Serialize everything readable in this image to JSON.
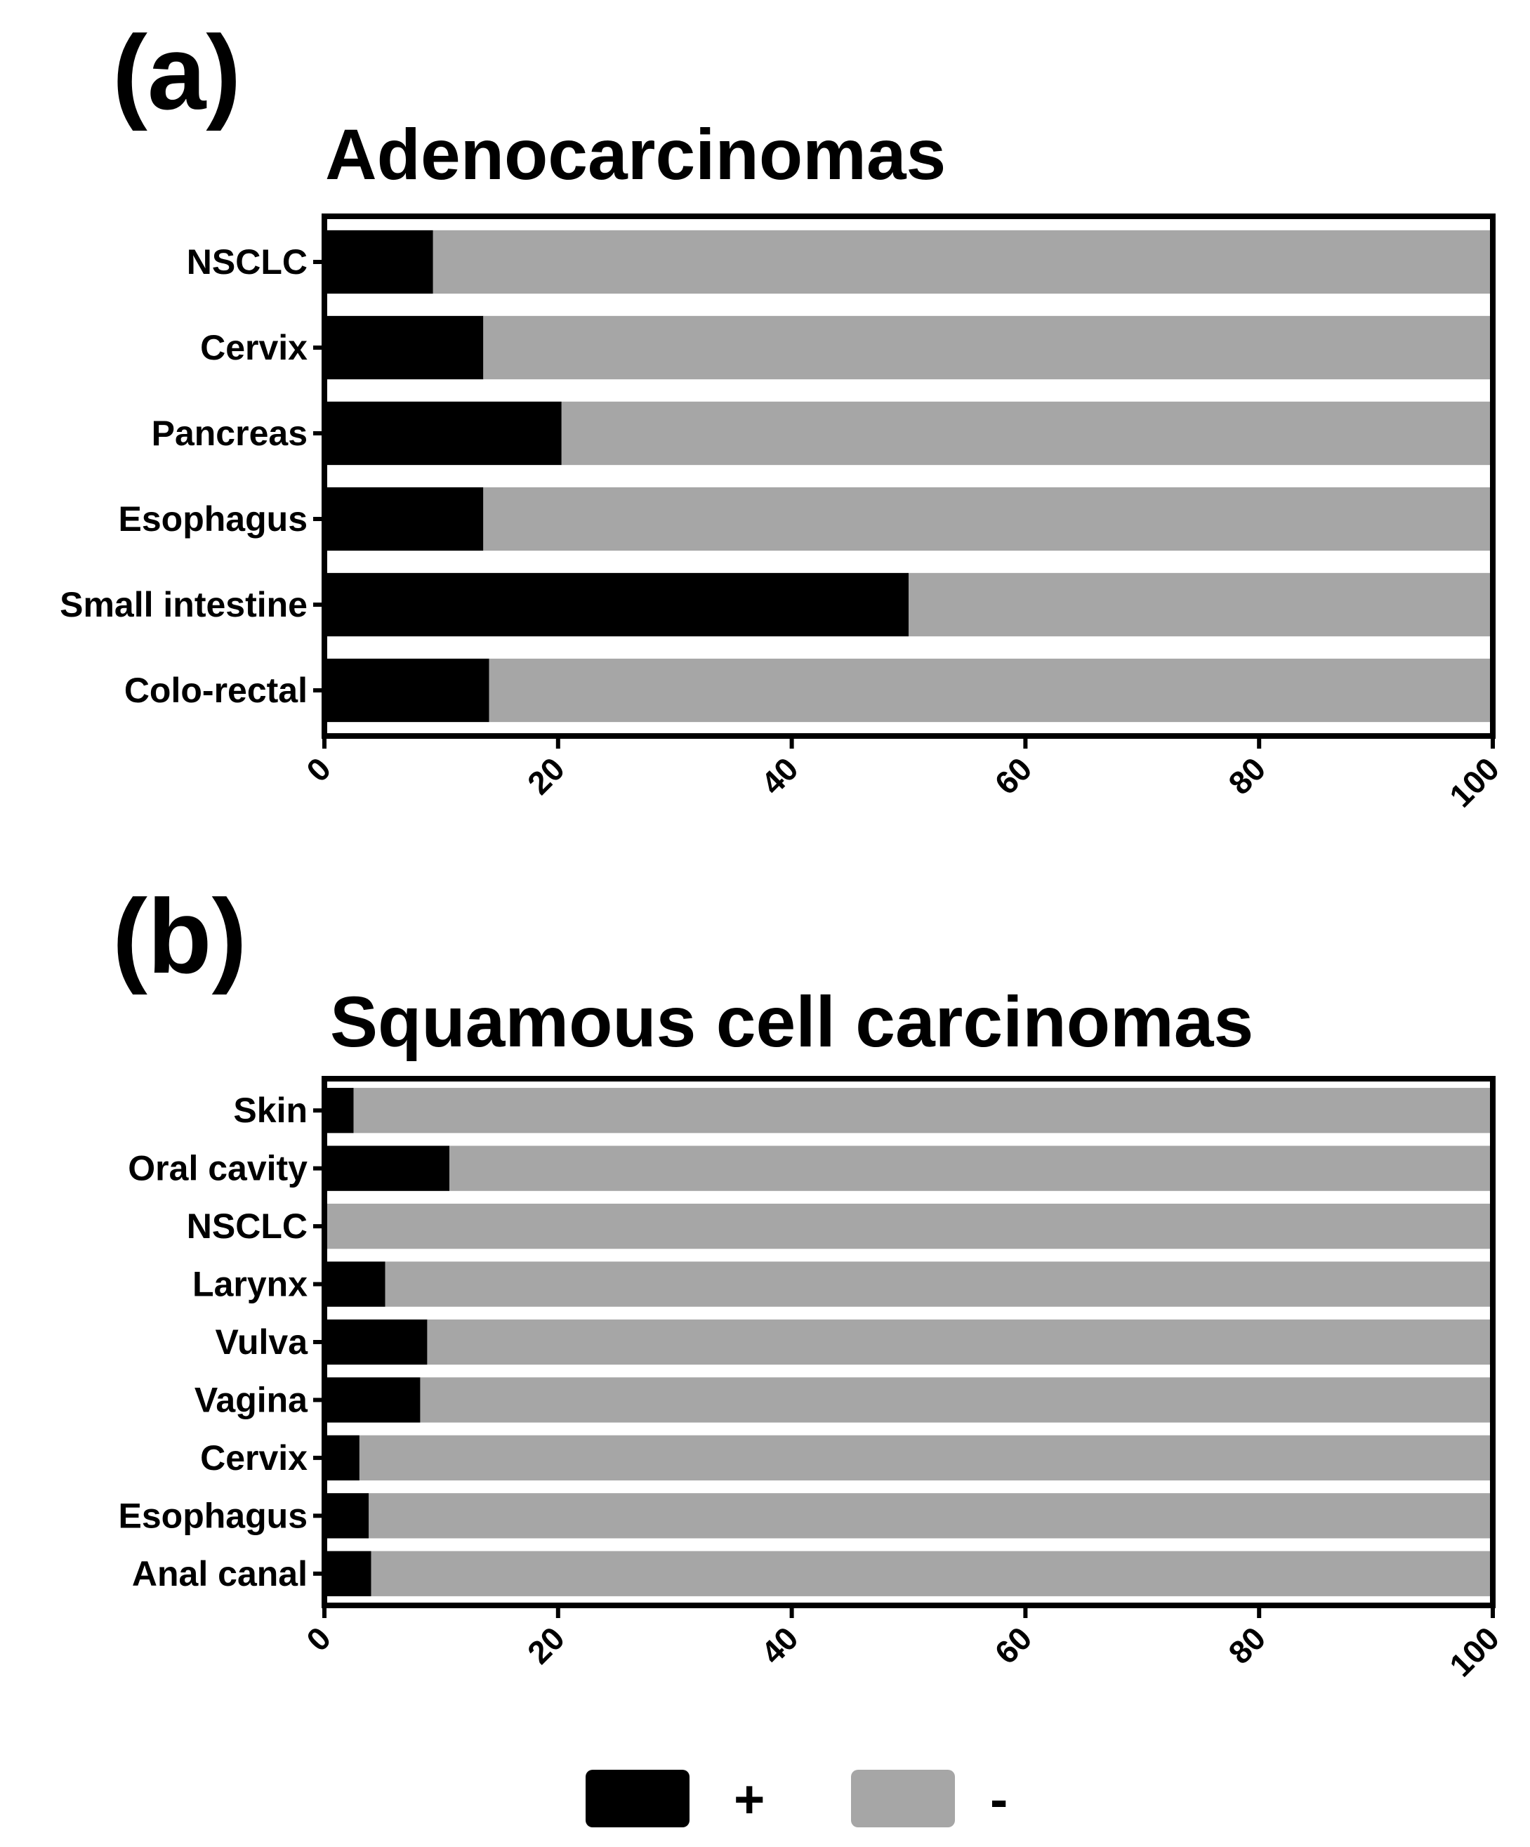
{
  "panels": [
    {
      "letter": "(a)"
    },
    {
      "letter": "(b)"
    }
  ],
  "legend": [
    {
      "label": "+",
      "color": "#000000"
    },
    {
      "label": "-",
      "color": "#a6a6a6"
    }
  ],
  "chart_data": [
    {
      "type": "bar",
      "orientation": "horizontal",
      "stacked": true,
      "title": "Adenocarcinomas",
      "xlabel": "",
      "ylabel": "",
      "xlim": [
        0,
        100
      ],
      "xticks": [
        0,
        20,
        40,
        60,
        80,
        100
      ],
      "grid": false,
      "legend_position": "bottom",
      "categories": [
        "NSCLC",
        "Cervix",
        "Pancreas",
        "Esophagus",
        "Small intestine",
        "Colo-rectal"
      ],
      "series": [
        {
          "name": "+",
          "color": "#000000",
          "values": [
            9.3,
            13.6,
            20.3,
            13.6,
            50.0,
            14.1
          ]
        },
        {
          "name": "-",
          "color": "#a6a6a6",
          "values": [
            90.7,
            86.4,
            79.7,
            86.4,
            50.0,
            85.9
          ]
        }
      ]
    },
    {
      "type": "bar",
      "orientation": "horizontal",
      "stacked": true,
      "title": "Squamous cell carcinomas",
      "xlabel": "",
      "ylabel": "",
      "xlim": [
        0,
        100
      ],
      "xticks": [
        0,
        20,
        40,
        60,
        80,
        100
      ],
      "grid": false,
      "legend_position": "bottom",
      "categories": [
        "Skin",
        "Oral cavity",
        "NSCLC",
        "Larynx",
        "Vulva",
        "Vagina",
        "Cervix",
        "Esophagus",
        "Anal canal"
      ],
      "series": [
        {
          "name": "+",
          "color": "#000000",
          "values": [
            2.5,
            10.7,
            0.0,
            5.2,
            8.8,
            8.2,
            3.0,
            3.8,
            4.0
          ]
        },
        {
          "name": "-",
          "color": "#a6a6a6",
          "values": [
            97.5,
            89.3,
            100.0,
            94.8,
            91.2,
            91.8,
            97.0,
            96.2,
            96.0
          ]
        }
      ]
    }
  ]
}
